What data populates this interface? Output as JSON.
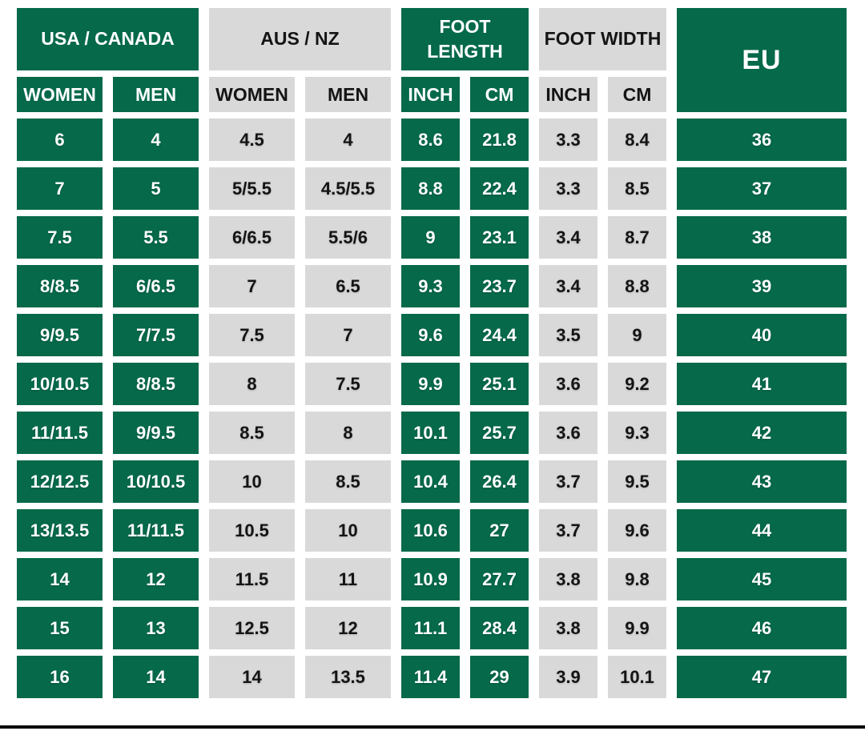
{
  "colors": {
    "cell_green": "#05694A",
    "cell_gray": "#D9D9D9",
    "text_on_green": "#ffffff",
    "text_on_gray": "#141414",
    "background": "#ffffff",
    "bottom_divider": "#000000"
  },
  "table": {
    "groups": {
      "usa_canada": "USA / CANADA",
      "aus_nz": "AUS / NZ",
      "foot_length": "FOOT LENGTH",
      "foot_width": "FOOT WIDTH",
      "eu": "EU"
    },
    "subheaders": [
      "WOMEN",
      "MEN",
      "WOMEN",
      "MEN",
      "INCH",
      "CM",
      "INCH",
      "CM"
    ],
    "column_keys": [
      "usa-women",
      "usa-men",
      "aus-women",
      "aus-men",
      "length-inch",
      "length-cm",
      "width-inch",
      "width-cm",
      "eu"
    ],
    "column_tones": [
      "green",
      "green",
      "gray",
      "gray",
      "green",
      "green",
      "gray",
      "gray",
      "green"
    ],
    "rows": [
      [
        "6",
        "4",
        "4.5",
        "4",
        "8.6",
        "21.8",
        "3.3",
        "8.4",
        "36"
      ],
      [
        "7",
        "5",
        "5/5.5",
        "4.5/5.5",
        "8.8",
        "22.4",
        "3.3",
        "8.5",
        "37"
      ],
      [
        "7.5",
        "5.5",
        "6/6.5",
        "5.5/6",
        "9",
        "23.1",
        "3.4",
        "8.7",
        "38"
      ],
      [
        "8/8.5",
        "6/6.5",
        "7",
        "6.5",
        "9.3",
        "23.7",
        "3.4",
        "8.8",
        "39"
      ],
      [
        "9/9.5",
        "7/7.5",
        "7.5",
        "7",
        "9.6",
        "24.4",
        "3.5",
        "9",
        "40"
      ],
      [
        "10/10.5",
        "8/8.5",
        "8",
        "7.5",
        "9.9",
        "25.1",
        "3.6",
        "9.2",
        "41"
      ],
      [
        "11/11.5",
        "9/9.5",
        "8.5",
        "8",
        "10.1",
        "25.7",
        "3.6",
        "9.3",
        "42"
      ],
      [
        "12/12.5",
        "10/10.5",
        "10",
        "8.5",
        "10.4",
        "26.4",
        "3.7",
        "9.5",
        "43"
      ],
      [
        "13/13.5",
        "11/11.5",
        "10.5",
        "10",
        "10.6",
        "27",
        "3.7",
        "9.6",
        "44"
      ],
      [
        "14",
        "12",
        "11.5",
        "11",
        "10.9",
        "27.7",
        "3.8",
        "9.8",
        "45"
      ],
      [
        "15",
        "13",
        "12.5",
        "12",
        "11.1",
        "28.4",
        "3.8",
        "9.9",
        "46"
      ],
      [
        "16",
        "14",
        "14",
        "13.5",
        "11.4",
        "29",
        "3.9",
        "10.1",
        "47"
      ]
    ]
  }
}
